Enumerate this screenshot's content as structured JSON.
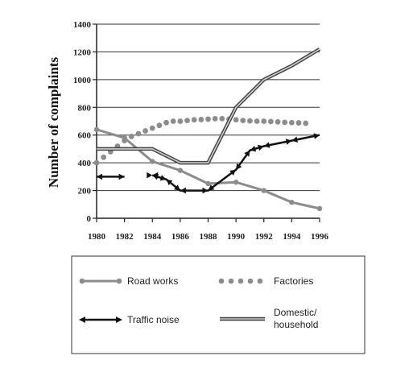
{
  "chart_data": {
    "type": "line",
    "title": "",
    "xlabel": "",
    "ylabel": "Number of complaints",
    "xlim": [
      1980,
      1996
    ],
    "ylim": [
      0,
      1400
    ],
    "xticks": [
      "1980",
      "1982",
      "1984",
      "1986",
      "1988",
      "1990",
      "1992",
      "1994",
      "1996"
    ],
    "yticks": [
      "0",
      "200",
      "400",
      "600",
      "800",
      "1000",
      "1200",
      "1400"
    ],
    "grid": "horizontal",
    "legend": "bottom",
    "series": [
      {
        "name": "Road works",
        "style": "gray-line-dots",
        "color": "#8c8c8c",
        "x": [
          1980,
          1982,
          1984,
          1986,
          1988,
          1990,
          1992,
          1994,
          1996
        ],
        "values": [
          640,
          580,
          410,
          345,
          250,
          260,
          200,
          115,
          70
        ]
      },
      {
        "name": "Factories",
        "style": "gray-dots",
        "color": "#8c8c8c",
        "x": [
          1980,
          1980.5,
          1981,
          1981.5,
          1982,
          1982.5,
          1983,
          1983.5,
          1984,
          1984.5,
          1985,
          1985.5,
          1986,
          1986.5,
          1987,
          1987.5,
          1988,
          1988.5,
          1989,
          1989.5,
          1990,
          1990.5,
          1991,
          1991.5,
          1992,
          1992.5,
          1993,
          1993.5,
          1994,
          1994.5,
          1995
        ],
        "values": [
          400,
          440,
          480,
          520,
          560,
          590,
          610,
          630,
          650,
          670,
          690,
          700,
          700,
          705,
          710,
          712,
          715,
          718,
          718,
          715,
          710,
          705,
          702,
          700,
          700,
          698,
          695,
          692,
          690,
          688,
          685
        ]
      },
      {
        "name": "Traffic noise",
        "style": "black-arrows",
        "color": "#111111",
        "x": [
          1980,
          1982,
          1982,
          1984,
          1984,
          1985,
          1986,
          1988,
          1990,
          1991,
          1992,
          1994,
          1996
        ],
        "values": [
          300,
          300,
          null,
          310,
          310,
          280,
          200,
          200,
          350,
          490,
          520,
          560,
          600
        ]
      },
      {
        "name": "Domestic/ household",
        "style": "double-line",
        "color": "#555555",
        "x": [
          1980,
          1984,
          1986,
          1988,
          1990,
          1992,
          1994,
          1996
        ],
        "values": [
          500,
          500,
          400,
          400,
          800,
          1000,
          1100,
          1220
        ]
      }
    ]
  },
  "legend": {
    "items": [
      {
        "label": "Road works"
      },
      {
        "label": "Factories"
      },
      {
        "label": "Traffic noise"
      },
      {
        "label": "Domestic/",
        "label2": "household"
      }
    ]
  }
}
